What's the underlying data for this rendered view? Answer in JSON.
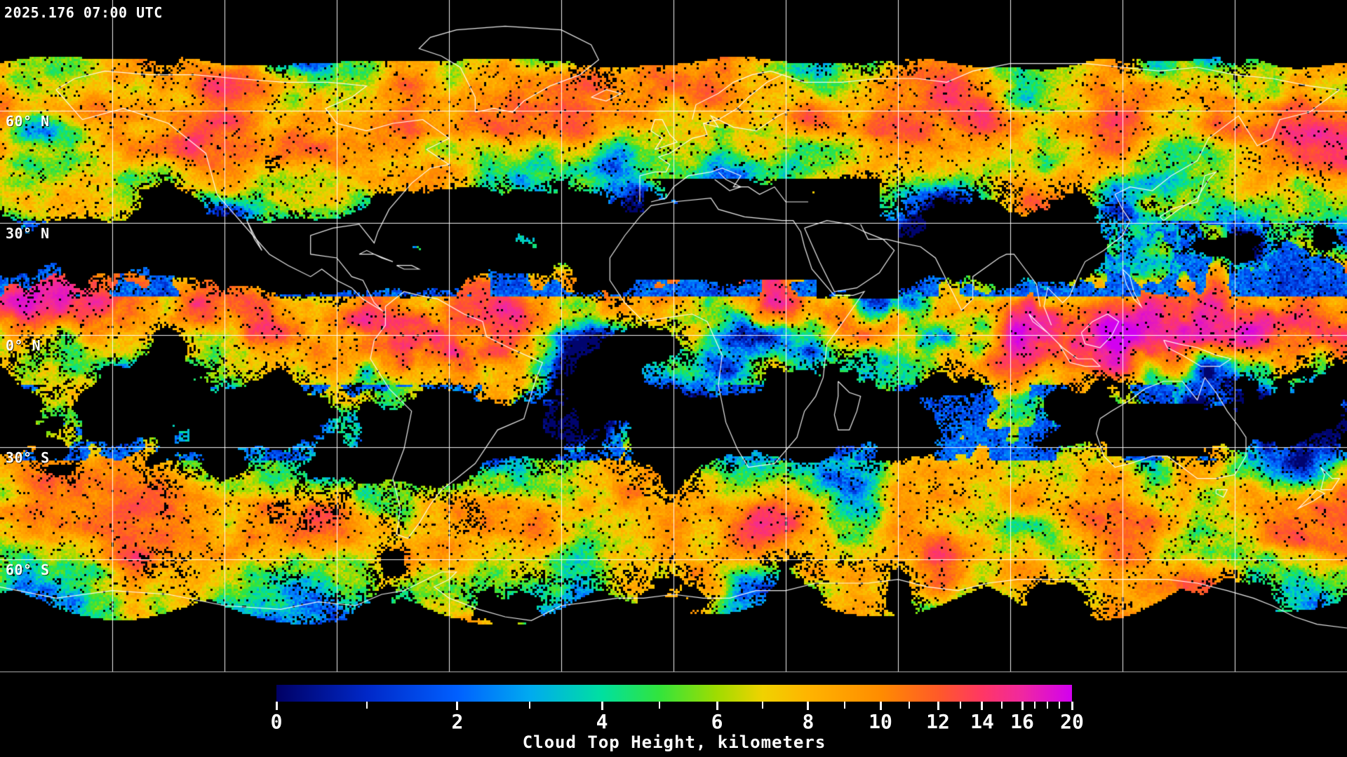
{
  "header": {
    "timestamp": "2025.176 07:00 UTC"
  },
  "map": {
    "projection": "equirectangular",
    "latitude_labels": [
      {
        "text": "60° N",
        "lat": 60
      },
      {
        "text": "30° N",
        "lat": 30
      },
      {
        "text": "0° N",
        "lat": 0
      },
      {
        "text": "30° S",
        "lat": -30
      },
      {
        "text": "60° S",
        "lat": -60
      }
    ],
    "graticule": {
      "lat_step_deg": 30,
      "lon_step_deg": 30
    },
    "colors": {
      "background": "#000000",
      "gridline": "#ffffff",
      "coastline": "#ffffff",
      "bottom_border": "#b4b4b4",
      "label_text": "#ffffff"
    }
  },
  "colorbar": {
    "title": "Cloud Top Height, kilometers",
    "ticks": [
      {
        "label": "0",
        "value": 0,
        "pos": 0.0
      },
      {
        "label": "2",
        "value": 2,
        "pos": 0.2275
      },
      {
        "label": "4",
        "value": 4,
        "pos": 0.4092
      },
      {
        "label": "6",
        "value": 6,
        "pos": 0.5538
      },
      {
        "label": "8",
        "value": 8,
        "pos": 0.6684
      },
      {
        "label": "10",
        "value": 10,
        "pos": 0.7593
      },
      {
        "label": "12",
        "value": 12,
        "pos": 0.8316
      },
      {
        "label": "14",
        "value": 14,
        "pos": 0.8871
      },
      {
        "label": "16",
        "value": 16,
        "pos": 0.9374
      },
      {
        "label": "20",
        "value": 20,
        "pos": 1.0
      }
    ],
    "minor_tick_every_km": 1,
    "palette": [
      {
        "km": 0,
        "color": "#000064"
      },
      {
        "km": 1,
        "color": "#0028c8"
      },
      {
        "km": 2,
        "color": "#0060ff"
      },
      {
        "km": 3,
        "color": "#00aaf0"
      },
      {
        "km": 4,
        "color": "#00e0a0"
      },
      {
        "km": 5,
        "color": "#32e43c"
      },
      {
        "km": 6,
        "color": "#a0dc00"
      },
      {
        "km": 7,
        "color": "#f0d200"
      },
      {
        "km": 8,
        "color": "#ffb400"
      },
      {
        "km": 10,
        "color": "#ff8c00"
      },
      {
        "km": 12,
        "color": "#ff5a28"
      },
      {
        "km": 14,
        "color": "#ff3764"
      },
      {
        "km": 16,
        "color": "#f028a0"
      },
      {
        "km": 20,
        "color": "#d200f0"
      }
    ]
  }
}
